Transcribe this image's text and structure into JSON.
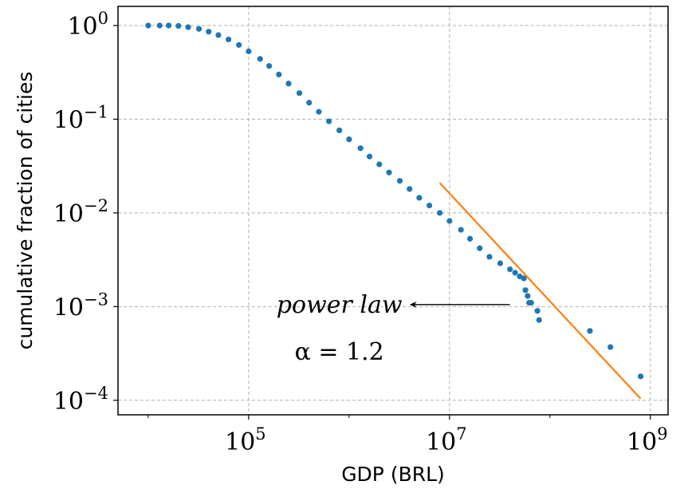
{
  "chart_data": {
    "type": "scatter",
    "xlabel": "GDP (BRL)",
    "ylabel": "cumulative fraction of cities",
    "xscale": "log",
    "yscale": "log",
    "xlim": [
      5000,
      1500000000
    ],
    "ylim": [
      7e-05,
      1.6
    ],
    "grid": true,
    "x_ticks": [
      {
        "value": 100000,
        "base": "10",
        "exp": "5"
      },
      {
        "value": 10000000,
        "base": "10",
        "exp": "7"
      },
      {
        "value": 1000000000,
        "base": "10",
        "exp": "9"
      }
    ],
    "y_ticks": [
      {
        "value": 1,
        "base": "10",
        "exp": "0"
      },
      {
        "value": 0.1,
        "base": "10",
        "exp": "−1"
      },
      {
        "value": 0.01,
        "base": "10",
        "exp": "−2"
      },
      {
        "value": 0.001,
        "base": "10",
        "exp": "−3"
      },
      {
        "value": 0.0001,
        "base": "10",
        "exp": "−4"
      }
    ],
    "series": [
      {
        "type": "scatter",
        "color": "#1f77b4",
        "x": [
          10000,
          13000,
          16000,
          20000,
          25000,
          32000,
          40000,
          50000,
          63000,
          80000,
          100000,
          130000,
          160000,
          200000,
          250000,
          320000,
          400000,
          500000,
          630000,
          800000,
          1000000,
          1300000,
          1600000,
          2000000,
          2500000,
          3200000,
          4000000,
          5000000,
          6300000,
          8000000,
          10000000,
          13000000,
          16000000,
          20000000,
          25000000,
          32000000,
          40000000,
          45000000,
          50000000,
          55000000,
          57000000,
          60000000,
          62000000,
          65000000,
          75000000,
          78000000,
          250000000,
          400000000,
          800000000
        ],
        "y": [
          1.0,
          1.0,
          1.0,
          0.99,
          0.96,
          0.92,
          0.86,
          0.79,
          0.71,
          0.62,
          0.53,
          0.44,
          0.37,
          0.3,
          0.24,
          0.19,
          0.15,
          0.12,
          0.095,
          0.076,
          0.061,
          0.049,
          0.04,
          0.033,
          0.027,
          0.022,
          0.018,
          0.0145,
          0.012,
          0.01,
          0.0082,
          0.0066,
          0.0053,
          0.0042,
          0.0034,
          0.0029,
          0.0025,
          0.0023,
          0.0021,
          0.002,
          0.0015,
          0.0013,
          0.0011,
          0.0011,
          0.0009,
          0.00072,
          0.00055,
          0.00037,
          0.00018
        ]
      },
      {
        "type": "line",
        "color": "#ff7f0e",
        "x": [
          8000000,
          800000000
        ],
        "y": [
          0.0209,
          0.000104
        ]
      }
    ],
    "annotations": [
      {
        "id": "power_law",
        "text": "power law",
        "x": 800000,
        "y": 0.00105
      },
      {
        "id": "alpha",
        "text": "α = 1.2",
        "x": 800000,
        "y": 0.00033
      }
    ],
    "arrow": {
      "from": [
        40000000,
        0.00105
      ],
      "to": [
        4000000,
        0.00105
      ]
    }
  }
}
